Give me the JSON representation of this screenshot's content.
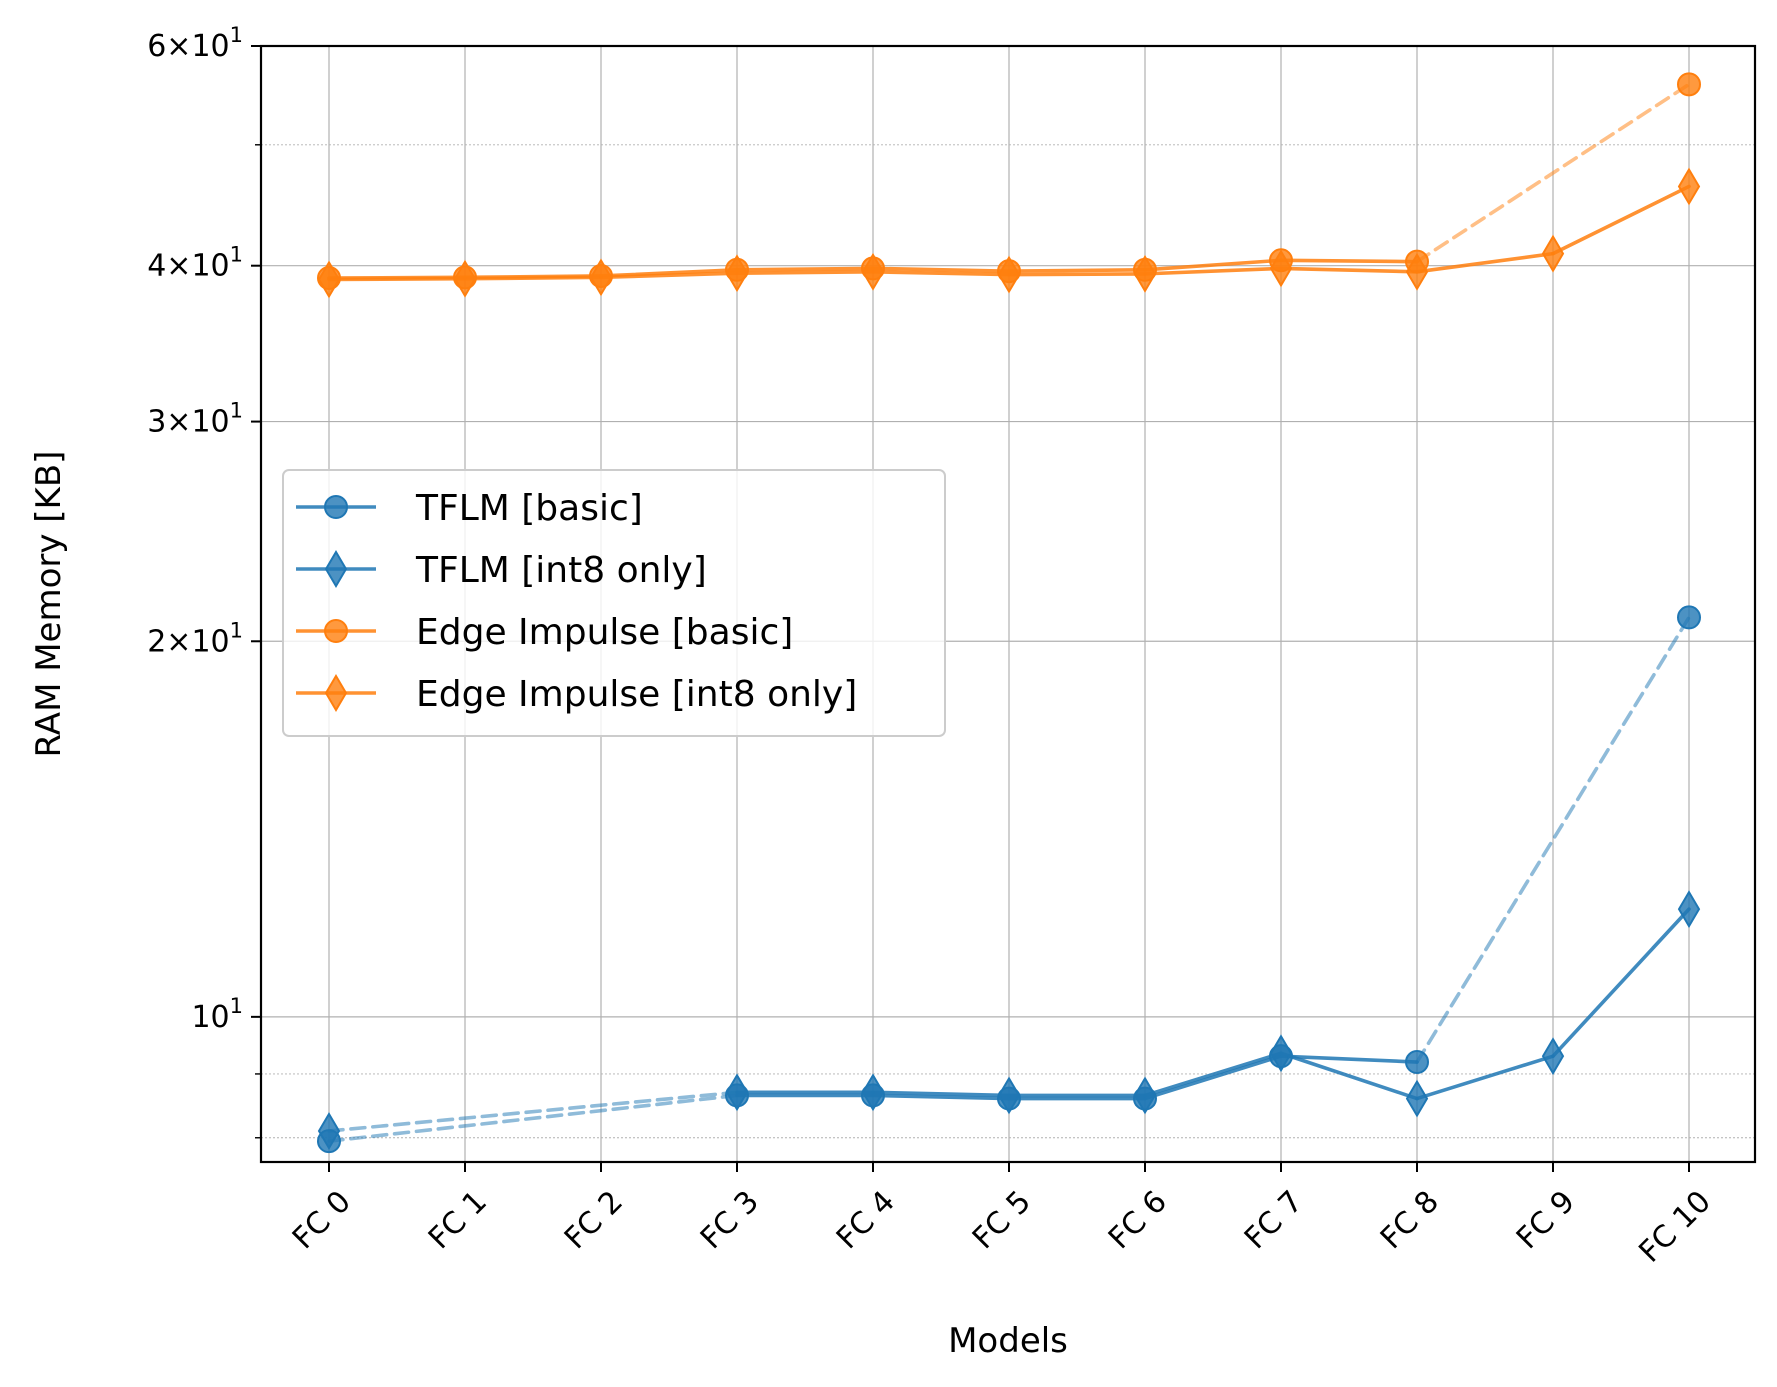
{
  "chart_data": {
    "type": "line",
    "xlabel": "Models",
    "ylabel": "RAM Memory [KB]",
    "yscale": "log",
    "ylim": [
      7.65,
      60
    ],
    "grid": true,
    "legend_position": "center-left",
    "categories": [
      "FC 0",
      "FC 1",
      "FC 2",
      "FC 3",
      "FC 4",
      "FC 5",
      "FC 6",
      "FC 7",
      "FC 8",
      "FC 9",
      "FC 10"
    ],
    "y_tick_labels": {
      "t10": "10",
      "t20": "2",
      "t30": "3",
      "t40": "4",
      "t60": "6"
    },
    "series": [
      {
        "name": "TFLM [basic]",
        "marker": "circle",
        "color": "#1f77b4",
        "values": [
          7.95,
          null,
          null,
          8.65,
          8.65,
          8.6,
          8.6,
          9.3,
          9.2,
          null,
          20.9
        ]
      },
      {
        "name": "TFLM [int8 only]",
        "marker": "diamond",
        "color": "#1f77b4",
        "values": [
          8.1,
          null,
          null,
          8.7,
          8.7,
          8.65,
          8.65,
          9.35,
          8.6,
          9.3,
          12.2
        ]
      },
      {
        "name": "Edge Impulse [basic]",
        "marker": "circle",
        "color": "#ff7f0e",
        "values": [
          39.1,
          39.15,
          39.25,
          39.7,
          39.8,
          39.6,
          39.7,
          40.4,
          40.3,
          null,
          55.9
        ]
      },
      {
        "name": "Edge Impulse [int8 only]",
        "marker": "diamond",
        "color": "#ff7f0e",
        "values": [
          39.0,
          39.05,
          39.15,
          39.45,
          39.55,
          39.35,
          39.4,
          39.8,
          39.55,
          40.9,
          46.3
        ]
      }
    ]
  }
}
